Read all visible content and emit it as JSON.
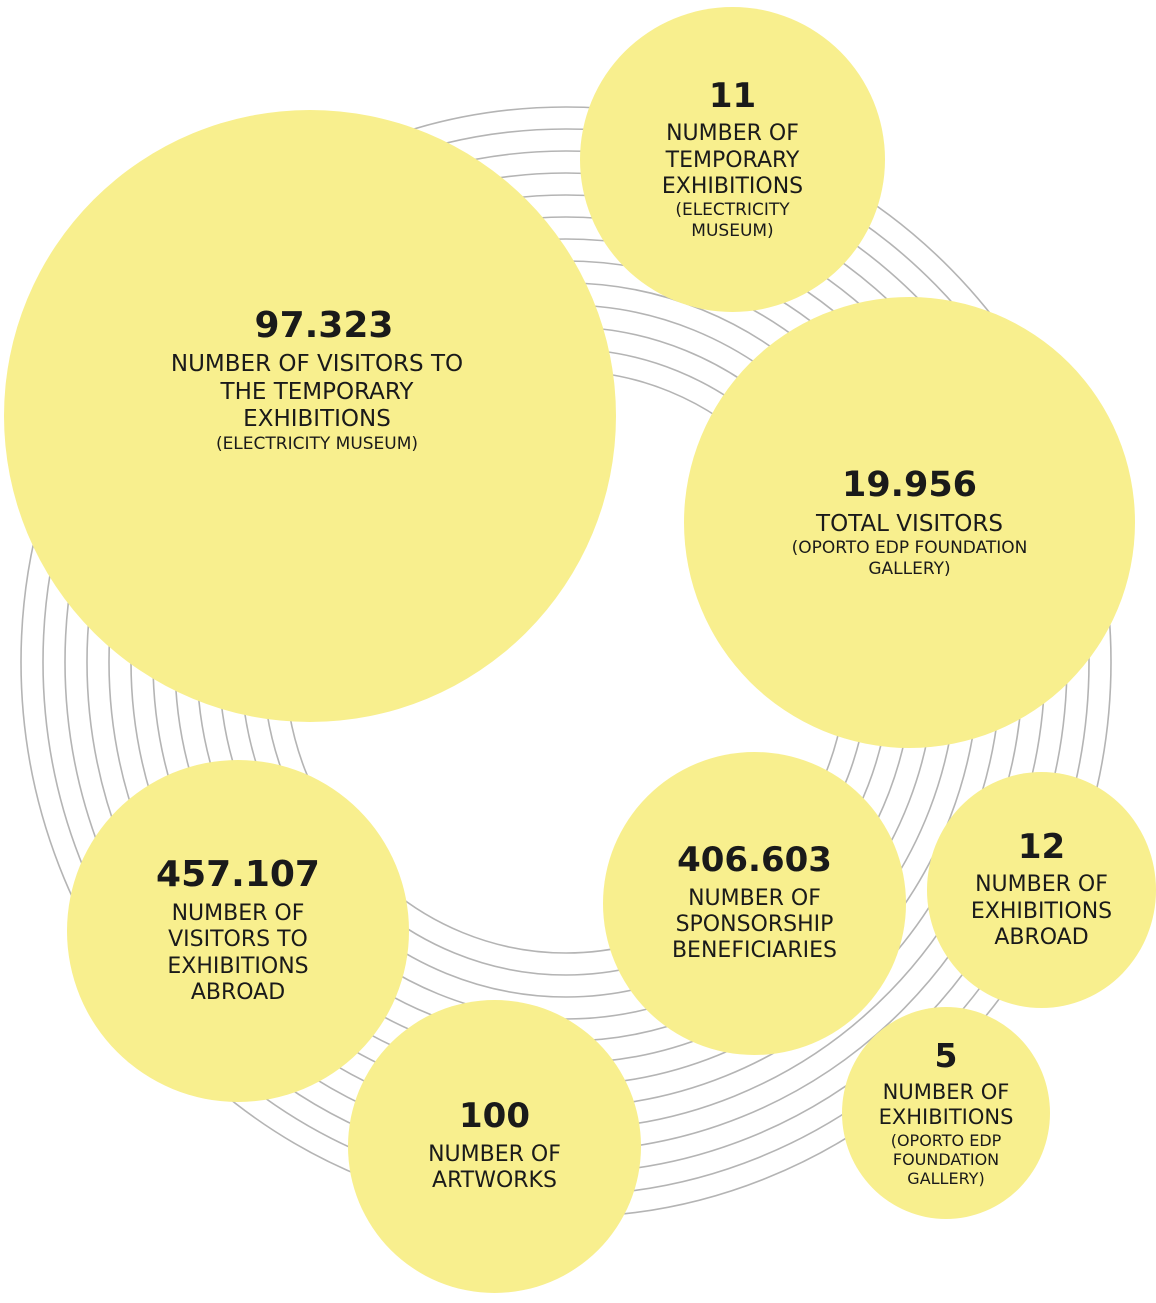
{
  "colors": {
    "bubble_fill": "#f8ef8e",
    "ring_stroke": "#b4b4b4",
    "text": "#1a1a1a"
  },
  "rings": {
    "count": 13
  },
  "bubbles": [
    {
      "id": "b1",
      "value": "97.323",
      "label": "NUMBER OF VISITORS TO THE TEMPORARY EXHIBITIONS",
      "sub": "(ELECTRICITY MUSEUM)"
    },
    {
      "id": "b2",
      "value": "11",
      "label": "NUMBER OF TEMPORARY EXHIBITIONS",
      "sub": "(ELECTRICITY MUSEUM)"
    },
    {
      "id": "b3",
      "value": "19.956",
      "label": "TOTAL VISITORS",
      "sub": "(OPORTO EDP FOUNDATION GALLERY)"
    },
    {
      "id": "b4",
      "value": "457.107",
      "label": "NUMBER OF VISITORS TO EXHIBITIONS ABROAD",
      "sub": ""
    },
    {
      "id": "b5",
      "value": "100",
      "label": "NUMBER OF ARTWORKS",
      "sub": ""
    },
    {
      "id": "b6",
      "value": "406.603",
      "label": "NUMBER OF SPONSORSHIP BENEFICIARIES",
      "sub": ""
    },
    {
      "id": "b7",
      "value": "12",
      "label": "NUMBER OF EXHIBITIONS ABROAD",
      "sub": ""
    },
    {
      "id": "b8",
      "value": "5",
      "label": "NUMBER OF EXHIBITIONS",
      "sub": "(OPORTO EDP FOUNDATION GALLERY)"
    }
  ]
}
